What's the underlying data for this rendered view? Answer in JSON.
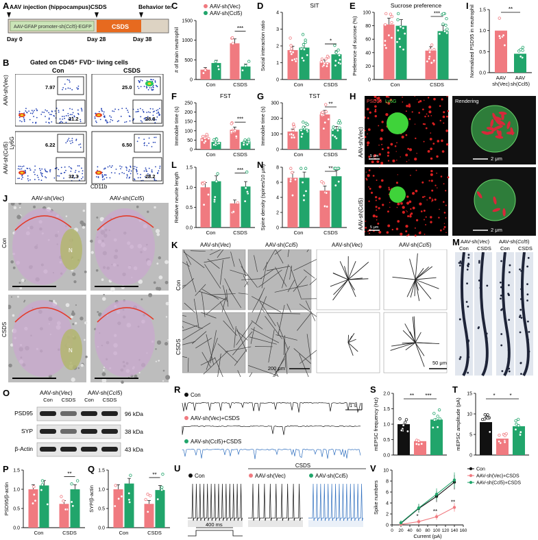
{
  "colors": {
    "vec": "#f07a80",
    "ccl5": "#21a56b",
    "con": "#111111",
    "blue": "#2f6fbf",
    "orange": "#e76a1f",
    "timeline_bg": "#ddd3c3",
    "timeline_green": "#cbe5b8",
    "dark_text": "#111111"
  },
  "panels": [
    "A",
    "B",
    "C",
    "D",
    "E",
    "F",
    "G",
    "H",
    "I",
    "J",
    "K",
    "L",
    "M",
    "N",
    "O",
    "P",
    "Q",
    "R",
    "S",
    "T",
    "U",
    "V"
  ],
  "panelA": {
    "title": "AAV injection (hippocampus)",
    "csds_top": "CSDS",
    "behavior": "Behavior test",
    "construct": "AAV-GFAP promoter-sh(",
    "construct_italic": "Ccl5",
    "construct_end": ")-EGFP",
    "csds_box": "CSDS",
    "day0": "Day 0",
    "day28": "Day 28",
    "day38": "Day 38"
  },
  "panelB": {
    "title": "Gated on CD45⁺ FVD⁻ living cells",
    "col_con": "Con",
    "col_csds": "CSDS",
    "row_vec": "AAV-sh(Vec)",
    "row_ccl5": "AAV-sh(Ccl5)",
    "yaxis": "Ly6G",
    "xaxis": "CD11b",
    "values": [
      [
        "7.97",
        "21.2"
      ],
      [
        "25.0",
        "28.8"
      ],
      [
        "6.22",
        "32.3"
      ],
      [
        "6.50",
        "28.2"
      ]
    ]
  },
  "legend_main": {
    "vec": "AAV-sh(Vec)",
    "ccl5": "AAV-sh(Ccl5)"
  },
  "panelC": {
    "ylabel": "# of brain neutrophil",
    "yticks": [
      "0",
      "500",
      "1000",
      "1500"
    ],
    "ymax": 1500,
    "groups": [
      "Con",
      "CSDS"
    ],
    "values": [
      [
        250,
        420
      ],
      [
        920,
        330
      ]
    ],
    "sig": "***"
  },
  "panelD": {
    "title": "SIT",
    "ylabel": "Social interaction ratio",
    "yticks": [
      "0",
      "1",
      "2",
      "3",
      "4"
    ],
    "ymax": 4,
    "groups": [
      "Con",
      "CSDS"
    ],
    "values": [
      [
        1.75,
        1.9
      ],
      [
        1.0,
        1.5
      ]
    ],
    "sig": "*"
  },
  "panelE": {
    "title": "Sucrose preference",
    "ylabel": "Preference of sucrose (%)",
    "yticks": [
      "0",
      "20",
      "40",
      "60",
      "80",
      "100"
    ],
    "ymax": 100,
    "groups": [
      "Con",
      "CSDS"
    ],
    "values": [
      [
        82,
        80
      ],
      [
        43,
        72
      ]
    ],
    "sig": "***"
  },
  "panelF": {
    "title": "FST",
    "ylabel": "Immobile time (s)",
    "yticks": [
      "0",
      "50",
      "100",
      "150",
      "200",
      "250"
    ],
    "ymax": 250,
    "groups": [
      "Con",
      "CSDS"
    ],
    "values": [
      [
        60,
        40
      ],
      [
        105,
        40
      ]
    ],
    "sig": "***"
  },
  "panelG": {
    "title": "TST",
    "ylabel": "Immobile time (s)",
    "yticks": [
      "0",
      "100",
      "200",
      "300"
    ],
    "ymax": 300,
    "groups": [
      "Con",
      "CSDS"
    ],
    "values": [
      [
        115,
        130
      ],
      [
        225,
        130
      ]
    ],
    "sig": "**"
  },
  "panelH": {
    "label_psd95": "PSD95",
    "label_ly6g": "Ly6G",
    "rendering": "Rendering",
    "row_vec": "AAV-sh(Vec)",
    "row_ccl5": "AAV-sh(Ccl5)",
    "scale_small": "5 μm",
    "scale_large": "2 μm"
  },
  "panelI": {
    "ylabel": "Normalized PSD95 in neutrophil",
    "yticks": [
      "0.0",
      "0.5",
      "1.0",
      "1.5"
    ],
    "ymax": 1.5,
    "groups": [
      "AAV sh(Vec)",
      "AAV sh(Ccl5)"
    ],
    "values": [
      1.0,
      0.45
    ],
    "sig": "**"
  },
  "panelJ": {
    "col_vec": "AAV-sh(Vec)",
    "col_ccl5": "AAV-sh(Ccl5)",
    "row_con": "Con",
    "row_csds": "CSDS",
    "n": "N"
  },
  "panelK": {
    "cols": [
      "AAV-sh(Vec)",
      "AAV-sh(Ccl5)",
      "AAV-sh(Vec)",
      "AAV-sh(Ccl5)"
    ],
    "row_con": "Con",
    "row_csds": "CSDS",
    "scale1": "200 μm",
    "scale2": "50 μm"
  },
  "panelL": {
    "ylabel": "Relative neurite length",
    "yticks": [
      "0.0",
      "0.5",
      "1.0",
      "1.5"
    ],
    "ymax": 1.5,
    "groups": [
      "Con",
      "CSDS"
    ],
    "values": [
      [
        1.0,
        1.15
      ],
      [
        0.6,
        1.02
      ]
    ],
    "sig": "***"
  },
  "panelN": {
    "ylabel": "Spine density (spines/10 μm)",
    "yticks": [
      "0",
      "2",
      "4",
      "6",
      "8"
    ],
    "ymax": 8,
    "groups": [
      "Con",
      "CSDS"
    ],
    "values": [
      [
        6.6,
        6.6
      ],
      [
        4.9,
        6.8
      ]
    ],
    "sig": "**"
  },
  "panelM": {
    "col_vec": "AAV-sh(Vec)",
    "col_ccl5": "AAV-sh(Ccl5)",
    "sub": [
      "Con",
      "CSDS",
      "Con",
      "CSDS"
    ]
  },
  "panelO": {
    "header_vec": "AAV-sh(Vec)",
    "header_ccl5": "AAV-sh(Ccl5)",
    "lanes": [
      "Con",
      "CSDS",
      "Con",
      "CSDS"
    ],
    "rows": [
      {
        "name": "PSD95",
        "kda": "96 kDa"
      },
      {
        "name": "SYP",
        "kda": "38 kDa"
      },
      {
        "name": "β-Actin",
        "kda": "43 kDa"
      }
    ]
  },
  "panelP": {
    "ylabel": "PSD95/β-actin",
    "yticks": [
      "0.0",
      "0.5",
      "1.0",
      "1.5"
    ],
    "ymax": 1.5,
    "groups": [
      "Con",
      "CSDS"
    ],
    "values": [
      [
        1.0,
        1.1
      ],
      [
        0.62,
        1.0
      ]
    ],
    "sig": "**"
  },
  "panelQ": {
    "ylabel": "SYP/β-actin",
    "yticks": [
      "0.0",
      "0.5",
      "1.0",
      "1.5"
    ],
    "ymax": 1.5,
    "groups": [
      "Con",
      "CSDS"
    ],
    "values": [
      [
        1.0,
        1.15
      ],
      [
        0.62,
        0.98
      ]
    ],
    "sig": "**"
  },
  "panelR": {
    "con": "Con",
    "vec": "AAV-sh(Vec)+CSDS",
    "ccl5": "AAV-sh(Ccl5)+CSDS",
    "scale": "1 s"
  },
  "panelS": {
    "ylabel": "mEPSC frequency (Hz)",
    "yticks": [
      "0.0",
      "0.5",
      "1.0",
      "1.5",
      "2.0"
    ],
    "ymax": 2.0,
    "values": [
      1.0,
      0.45,
      1.15
    ],
    "sig1": "**",
    "sig2": "***"
  },
  "panelT": {
    "ylabel": "mEPSC amplitude (pA)",
    "yticks": [
      "0",
      "5",
      "10",
      "15"
    ],
    "ymax": 15,
    "values": [
      8.0,
      4.0,
      7.0
    ],
    "sig1": "*",
    "sig2": "*"
  },
  "panelU": {
    "csds": "CSDS",
    "con": "Con",
    "vec": "AAV-sh(Vec)",
    "ccl5": "AAV-sh(Ccl5)",
    "scale": "400 ms"
  },
  "panelV": {
    "ylabel": "Spike numbers",
    "xlabel": "Current (pA)",
    "xticks": [
      "0",
      "20",
      "40",
      "60",
      "80",
      "100",
      "120",
      "140",
      "160"
    ],
    "yticks": [
      "0",
      "2",
      "4",
      "6",
      "8",
      "10"
    ],
    "legend": [
      "Con",
      "AAV-sh(Vec)+CSDS",
      "AAV-sh(Ccl5)+CSDS"
    ],
    "x": [
      20,
      60,
      100,
      140
    ],
    "series": [
      {
        "values": [
          0.3,
          3.0,
          5.2,
          7.8
        ]
      },
      {
        "values": [
          0.1,
          0.6,
          1.5,
          3.2
        ]
      },
      {
        "values": [
          0.4,
          3.1,
          5.6,
          8.2
        ]
      }
    ],
    "sig": [
      "*",
      "**",
      "**"
    ]
  }
}
